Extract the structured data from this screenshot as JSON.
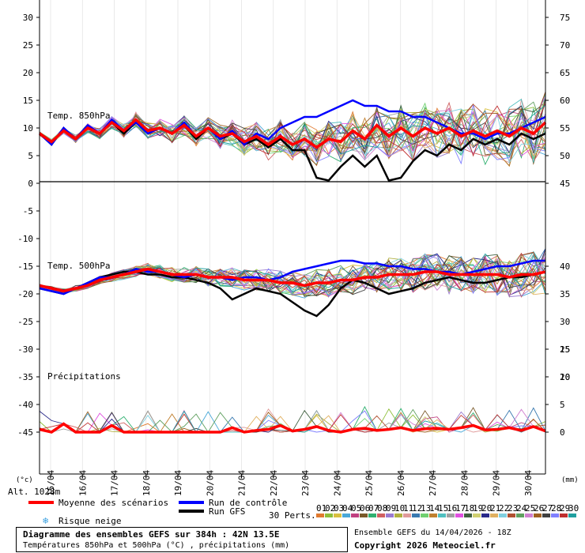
{
  "chart_data": {
    "type": "line",
    "left_axis": {
      "ticks": [
        30,
        25,
        20,
        15,
        10,
        5,
        0,
        -5,
        -10,
        -15,
        -20,
        -25,
        -30,
        -35,
        -40,
        -45
      ],
      "unit": "(°c)",
      "range": [
        -50,
        30
      ]
    },
    "right_axis_temp850": {
      "ticks": [
        75,
        70,
        65,
        60,
        55,
        50,
        45
      ]
    },
    "right_axis_temp500": {
      "ticks": [
        40,
        35,
        30,
        25,
        20
      ]
    },
    "right_axis_precip": {
      "ticks": [
        15,
        10,
        5,
        0
      ],
      "unit": "(mm)"
    },
    "dates": [
      "15/04",
      "16/04",
      "17/04",
      "18/04",
      "19/04",
      "20/04",
      "21/04",
      "22/04",
      "23/04",
      "24/04",
      "25/04",
      "26/04",
      "27/04",
      "28/04",
      "29/04",
      "30/04"
    ],
    "panels": {
      "temp850": "Temp. 850hPa",
      "temp500": "Temp. 500hPa",
      "precip": "Précipitations"
    },
    "mean_850": [
      9,
      7.5,
      9.5,
      8,
      10,
      9,
      11,
      9.5,
      11.5,
      9.5,
      10,
      9,
      10.5,
      8.5,
      10,
      8.5,
      9,
      7.5,
      8.5,
      7,
      8.5,
      7,
      8,
      6.5,
      8,
      7.5,
      9.5,
      8,
      10.5,
      8.5,
      10,
      8.5,
      10,
      9,
      10,
      8.5,
      9.5,
      8.5,
      9.5,
      8.5,
      10,
      9,
      11
    ],
    "mean_500": [
      -18.5,
      -19,
      -19.5,
      -19,
      -18.5,
      -17.5,
      -17,
      -16.5,
      -16,
      -15.5,
      -16,
      -16.5,
      -16.5,
      -16.5,
      -17,
      -17,
      -17,
      -17.5,
      -17.5,
      -17.5,
      -18,
      -18,
      -18.5,
      -18,
      -18,
      -17.5,
      -17.5,
      -17,
      -17,
      -16.5,
      -16.5,
      -16.5,
      -16,
      -16,
      -16.5,
      -16.5,
      -16.5,
      -16.5,
      -16.5,
      -17,
      -16.5,
      -16.5,
      -16
    ],
    "mean_precip": [
      0.5,
      0,
      1.5,
      0,
      0,
      0,
      1.2,
      0,
      0,
      0,
      0,
      0,
      0,
      0,
      0,
      0,
      0.8,
      0,
      0.3,
      0.5,
      1.2,
      0.2,
      0.5,
      1,
      0.3,
      0,
      0.5,
      0.7,
      0.3,
      0.5,
      0.8,
      0.3,
      0.6,
      0.7,
      0.5,
      0.8,
      1.2,
      0.4,
      0.5,
      0.8,
      0.3,
      1,
      0.2
    ],
    "control_850": [
      9,
      7,
      10,
      8,
      10.5,
      9,
      11.5,
      9.5,
      11,
      9,
      10,
      9,
      11,
      8.5,
      10,
      8,
      9.5,
      7,
      9,
      8,
      10,
      11,
      12,
      12,
      13,
      14,
      15,
      14,
      14,
      13,
      13,
      12,
      12,
      11,
      10,
      9,
      9,
      8,
      9,
      9,
      10,
      11,
      12
    ],
    "control_500": [
      -19,
      -19.5,
      -20,
      -19,
      -18,
      -17,
      -17,
      -16.5,
      -15.5,
      -16,
      -16,
      -16.5,
      -17,
      -16.5,
      -17,
      -17,
      -17.5,
      -17,
      -17,
      -17.5,
      -17,
      -16,
      -15.5,
      -15,
      -14.5,
      -14,
      -14,
      -14.5,
      -14.5,
      -15,
      -15,
      -15.5,
      -15.5,
      -16,
      -16,
      -16.5,
      -16,
      -15.5,
      -15,
      -15,
      -14.5,
      -14,
      -14
    ],
    "gfs_850": [
      9,
      7,
      10,
      8,
      10,
      9,
      11,
      9,
      11,
      9.5,
      10,
      9,
      10.5,
      8,
      10,
      8,
      9,
      7,
      8,
      6.5,
      8,
      6,
      6,
      1,
      0.5,
      3,
      5,
      3,
      5,
      0.5,
      1,
      4,
      6,
      5,
      7,
      6,
      8,
      7,
      8,
      7,
      9,
      8,
      9
    ],
    "gfs_500": [
      -19,
      -19.5,
      -20,
      -19,
      -18,
      -17,
      -16.5,
      -16,
      -16,
      -16.5,
      -16.5,
      -17,
      -17,
      -17.5,
      -18,
      -19,
      -21,
      -20,
      -19,
      -19.5,
      -20,
      -21.5,
      -23,
      -24,
      -22,
      -19,
      -17.5,
      -18,
      -19,
      -20,
      -19.5,
      -19,
      -18,
      -17.5,
      -17,
      -17.5,
      -18,
      -18,
      -17.5,
      -17,
      -17,
      -16.5,
      -16
    ],
    "legend": {
      "mean": "Moyenne des scénarios",
      "control": "Run de contrôle",
      "gfs": "Run GFS",
      "snow": "Risque neige",
      "perts": "30 Perts."
    },
    "pert_labels": [
      "01",
      "02",
      "03",
      "04",
      "05",
      "06",
      "07",
      "08",
      "09",
      "10",
      "11",
      "12",
      "13",
      "14",
      "15",
      "16",
      "17",
      "18",
      "19",
      "20",
      "21",
      "22",
      "23",
      "24",
      "25",
      "26",
      "27",
      "28",
      "29",
      "30"
    ],
    "pert_colors": [
      "#e07a2f",
      "#8fbf3a",
      "#d8c040",
      "#4aa8d8",
      "#c04080",
      "#7a5a2a",
      "#30b070",
      "#d06060",
      "#9a7ad0",
      "#b0b040",
      "#e09a9a",
      "#3a7ab0",
      "#70d070",
      "#c08030",
      "#50c0c0",
      "#a0a0a0",
      "#e050e0",
      "#406040",
      "#d0d070",
      "#2a2a8a",
      "#e0b060",
      "#80d0e0",
      "#b05030",
      "#60a060",
      "#d080d0",
      "#a06020",
      "#404040",
      "#8080ff",
      "#c03030",
      "#20a0a0"
    ],
    "colors": {
      "mean": "#ff0000",
      "control": "#0000ff",
      "gfs": "#000000"
    }
  },
  "alt_label": "Alt. 1028m",
  "footer": {
    "title": "Diagramme des ensembles GEFS sur 384h : 42N 13.5E",
    "subtitle": "Températures 850hPa et 500hPa (°C) , précipitations (mm)",
    "ensemble": "Ensemble GEFS du 14/04/2026 - 18Z",
    "copyright": "Copyright 2026 Meteociel.fr"
  }
}
